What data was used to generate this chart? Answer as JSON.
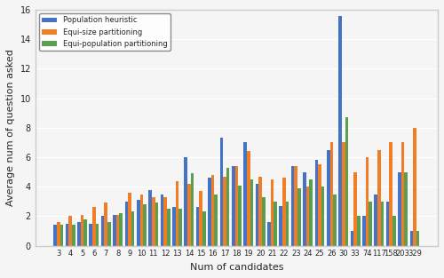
{
  "categories": [
    "3",
    "4",
    "5",
    "6",
    "7",
    "8",
    "9",
    "10",
    "11",
    "12",
    "13",
    "14",
    "15",
    "16",
    "17",
    "18",
    "19",
    "20",
    "21",
    "22",
    "23",
    "24",
    "25",
    "26",
    "30",
    "33",
    "74",
    "117",
    "158",
    "203",
    "329"
  ],
  "population_heuristic": [
    1.4,
    1.5,
    1.6,
    1.5,
    2.0,
    2.1,
    3.0,
    3.1,
    3.8,
    3.5,
    2.6,
    6.0,
    2.6,
    4.6,
    7.3,
    5.4,
    7.0,
    4.2,
    1.6,
    2.7,
    5.4,
    5.0,
    5.8,
    6.5,
    15.6,
    1.0,
    2.0,
    3.5,
    3.0,
    5.0,
    1.0
  ],
  "equi_size": [
    1.6,
    2.0,
    2.1,
    2.6,
    2.9,
    2.1,
    3.6,
    3.5,
    3.3,
    3.3,
    4.4,
    4.2,
    3.7,
    4.8,
    4.7,
    5.4,
    6.4,
    4.7,
    4.5,
    4.6,
    5.4,
    4.0,
    5.5,
    7.0,
    7.0,
    5.0,
    6.0,
    6.5,
    7.0,
    7.0,
    8.0
  ],
  "equi_population": [
    1.4,
    1.4,
    1.8,
    1.5,
    1.6,
    2.2,
    2.3,
    2.8,
    2.9,
    2.5,
    2.5,
    4.9,
    2.3,
    3.5,
    5.3,
    4.1,
    4.5,
    3.3,
    3.0,
    3.0,
    3.9,
    4.5,
    4.0,
    3.5,
    8.7,
    2.0,
    3.0,
    3.0,
    2.0,
    5.0,
    1.0
  ],
  "colors": [
    "#4472c4",
    "#f07e26",
    "#5a9e4f"
  ],
  "legend_labels": [
    "Population heuristic",
    "Equi-size partitioning",
    "Equi-population partitioning"
  ],
  "xlabel": "Num of candidates",
  "ylabel": "Average num of question asked",
  "ylim": [
    0,
    16
  ],
  "yticks": [
    0,
    2,
    4,
    6,
    8,
    10,
    12,
    14,
    16
  ],
  "bg_color": "#f5f5f5",
  "grid_color": "white",
  "title": ""
}
